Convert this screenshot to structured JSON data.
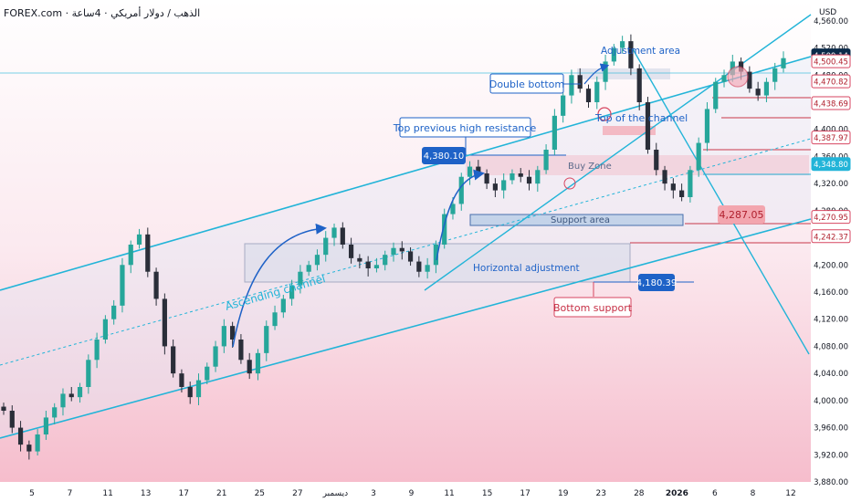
{
  "header": {
    "symbol_title": "FOREX.com · ﻿الذهب / دولار أمريكي · 4ساعة"
  },
  "currency": "USD",
  "colors": {
    "up": "#26a69a",
    "down": "#2a2e39",
    "channel": "#22b4d8",
    "blue_label": "#1e62c7",
    "red_label": "#e04e5c",
    "pink_box": "#f3c1cc",
    "band": "#c9d6e8"
  },
  "price_axis": {
    "ticks": [
      "4,560.00",
      "4,520.00",
      "4,480.00",
      "4,440.00",
      "4,400.00",
      "4,360.00",
      "4,320.00",
      "4,280.00",
      "4,240.00",
      "4,200.00",
      "4,160.00",
      "4,120.00",
      "4,080.00",
      "4,040.00",
      "4,000.00",
      "3,960.00",
      "3,920.00",
      "3,880.00"
    ],
    "badges": [
      {
        "value": "4,509.14",
        "style": "dark"
      },
      {
        "value": "4,500.45",
        "style": "red"
      },
      {
        "value": "4,470.82",
        "style": "red"
      },
      {
        "value": "4,438.69",
        "style": "red"
      },
      {
        "value": "4,387.97",
        "style": "red"
      },
      {
        "value": "4,348.80",
        "style": "blue"
      },
      {
        "value": "4,270.95",
        "style": "red"
      },
      {
        "value": "4,242.37",
        "style": "red"
      }
    ]
  },
  "time_axis": {
    "ticks": [
      "5",
      "7",
      "11",
      "13",
      "17",
      "21",
      "25",
      "27",
      "ديسمبر",
      "3",
      "9",
      "11",
      "15",
      "17",
      "19",
      "23",
      "28",
      "2026",
      "6",
      "8",
      "12"
    ]
  },
  "annotations": {
    "adjustment_area": "Adjustment area",
    "double_bottom": "Double bottom",
    "top_of_channel": "Top of the channel",
    "top_previous_high": "Top previous high resistance",
    "buy_zone": "Buy Zone",
    "support_area": "Support area",
    "horizontal_adjustment": "Horizontal adjustment",
    "ascending_channel": "Ascending channel",
    "bottom_support": "Bottom support",
    "label_4380": "4,380.10",
    "label_4287": "4,287.05",
    "label_4180": "4,180.39"
  },
  "chart_data": {
    "type": "candlestick",
    "x_axis": "date (4h candles)",
    "y_axis": "Price (USD)",
    "ylim": [
      3880,
      4580
    ],
    "grid": false,
    "series": [
      {
        "values": [
          3985,
          3960,
          3935,
          3925,
          3950,
          3975,
          3990,
          4010,
          4005,
          4020,
          4060,
          4090,
          4120,
          4140,
          4200,
          4230,
          4245,
          4190,
          4150,
          4080,
          4040,
          4020,
          4005,
          4030,
          4050,
          4080,
          4110,
          4090,
          4060,
          4040,
          4070,
          4110,
          4130,
          4150,
          4170,
          4190,
          4200,
          4215,
          4240,
          4255,
          4230,
          4210,
          4205,
          4195,
          4200,
          4215,
          4225,
          4220,
          4205,
          4190,
          4200,
          4230,
          4275,
          4290,
          4330,
          4345,
          4335,
          4320,
          4310,
          4325,
          4335,
          4330,
          4320,
          4340,
          4370,
          4420,
          4450,
          4480,
          4460,
          4440,
          4470,
          4500,
          4520,
          4530,
          4490,
          4440,
          4370,
          4340,
          4320,
          4310,
          4300,
          4340,
          4380,
          4430,
          4470,
          4480,
          4500,
          4485,
          4460,
          4450,
          4470,
          4490,
          4505
        ]
      }
    ],
    "levels": [
      4509.14,
      4500.45,
      4470.82,
      4438.69,
      4387.97,
      4348.8,
      4287.05,
      4270.95,
      4242.37,
      4180.39,
      4380.1
    ]
  }
}
